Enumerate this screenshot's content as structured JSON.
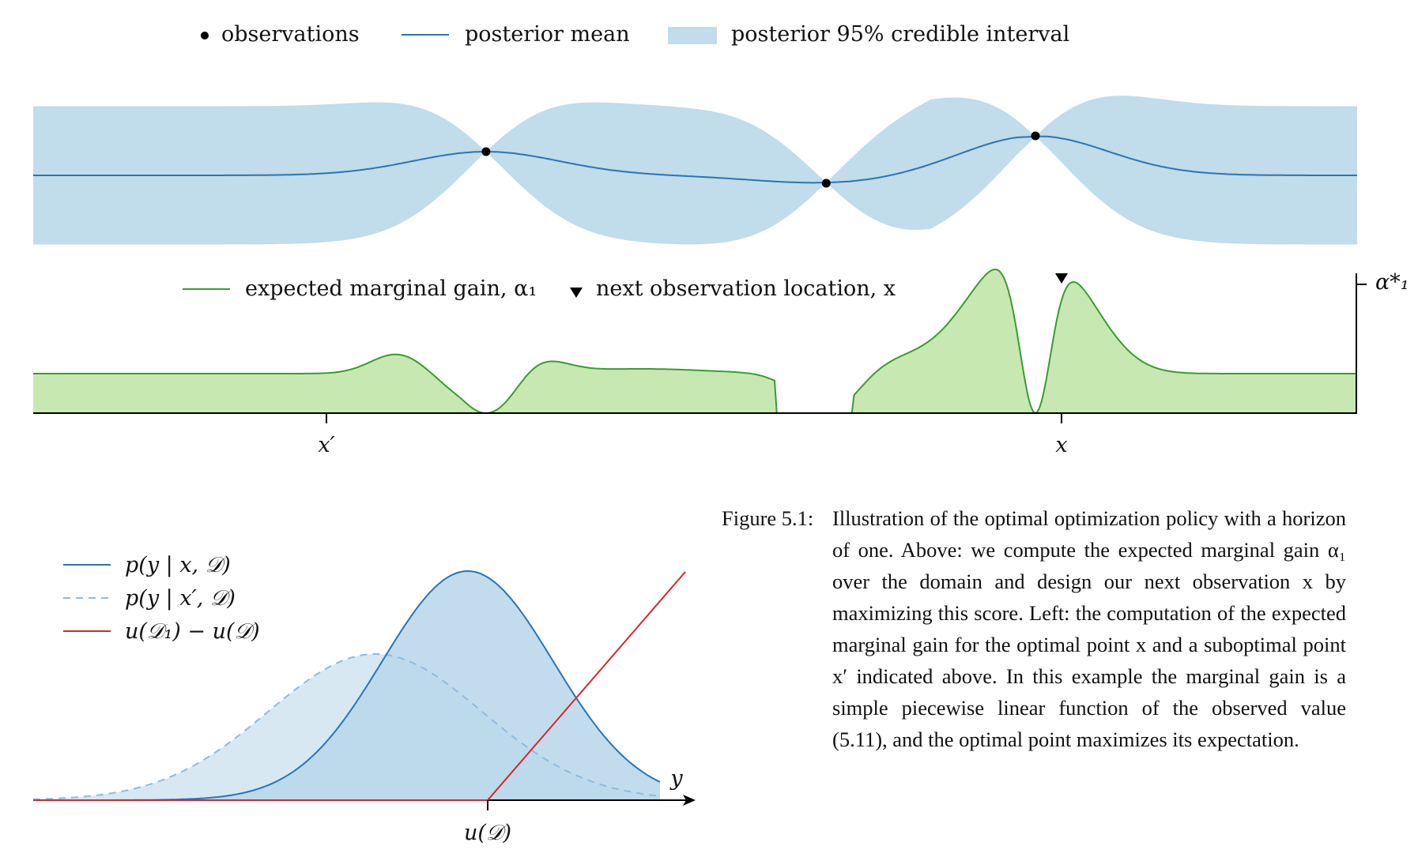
{
  "top_legend": {
    "observations": "observations",
    "posterior_mean": "posterior mean",
    "credible_interval": "posterior 95% credible interval"
  },
  "gain_legend": {
    "gain": "expected marginal gain, α₁",
    "next": "next observation location, x"
  },
  "gain_axis": {
    "alpha_star": "α*₁",
    "x_prime": "x′",
    "x": "x"
  },
  "bottom_legend": {
    "p_x": "p(y | x, 𝒟)",
    "p_xprime": "p(y | x′, 𝒟)",
    "utility": "u(𝒟₁) − u(𝒟)"
  },
  "bottom_axis": {
    "y": "y",
    "u_D": "u(𝒟)"
  },
  "caption": {
    "label": "Figure 5.1:",
    "text": "Illustration of the optimal optimization policy with a horizon of one. Above: we compute the expected marginal gain α₁ over the domain and design our next observation x by maximizing this score. Left: the computation of the expected marginal gain for the optimal point x and a suboptimal point x′ indicated above. In this example the marginal gain is a simple piecewise linear function of the observed value (5.11), and the optimal point maximizes its expectation."
  },
  "colors": {
    "interval_fill": "#c1dcea",
    "mean_line": "#2a74b5",
    "gain_fill": "#c8e8b2",
    "gain_line": "#3a9c2e",
    "utility_line": "#d9262a",
    "dist_x_fill": "#b9d6ea",
    "dist_xprime_fill": "#d7e8f3",
    "dist_xprime_line": "#8dbbe0"
  },
  "chart_data": [
    {
      "type": "area",
      "panel": "posterior",
      "series": [
        {
          "name": "observations",
          "x": [
            0.342,
            0.599,
            0.757
          ],
          "y": [
            0.3,
            -0.1,
            0.5
          ]
        },
        {
          "name": "posterior mean"
        },
        {
          "name": "posterior 95% credible interval"
        }
      ]
    },
    {
      "type": "area",
      "panel": "expected marginal gain",
      "series": [
        {
          "name": "expected marginal gain, α₁"
        },
        {
          "name": "next observation location, x",
          "x": [
            0.777
          ]
        }
      ],
      "ticks": [
        "x′",
        "x"
      ],
      "max_label": "α*₁"
    },
    {
      "type": "line",
      "panel": "predictive distributions",
      "series": [
        {
          "name": "p(y | x, 𝒟)",
          "mean": 0.65,
          "sd": 0.6
        },
        {
          "name": "p(y | x′, 𝒟)",
          "mean": 0.0,
          "sd": 0.75
        },
        {
          "name": "u(𝒟₁) − u(𝒟)",
          "kink": 1.0
        }
      ],
      "xlabel": "y",
      "tick_labels": [
        "u(𝒟)"
      ]
    }
  ]
}
